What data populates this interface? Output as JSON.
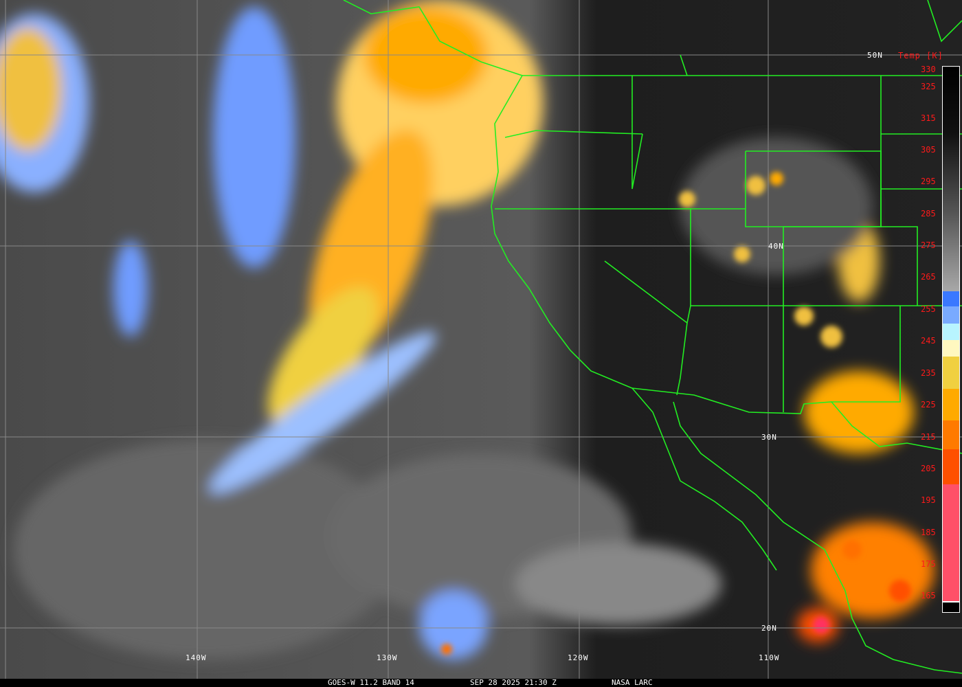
{
  "footer": {
    "satellite_band": "GOES-W 11.2 BAND 14",
    "datetime": "SEP 28 2025 21:30 Z",
    "source": "NASA LARC"
  },
  "colorbar": {
    "title": "Temp [K]",
    "ticks": [
      "330",
      "325",
      "315",
      "305",
      "295",
      "285",
      "275",
      "265",
      "255",
      "245",
      "235",
      "225",
      "215",
      "205",
      "195",
      "185",
      "175",
      "165"
    ],
    "colors": {
      "warm_black": "#000000",
      "cold_gray": "#a8a8a8",
      "blue": "#3a78ff",
      "light_blue": "#79aaff",
      "pale_cyan": "#b8f4ff",
      "cream": "#fff8c0",
      "yellow": "#f0d040",
      "orange": "#ffaa00",
      "dark_orange": "#ff7a00",
      "red_orange": "#ff5000",
      "pink": "#ff5068"
    }
  },
  "grid": {
    "longitudes": [
      "140W",
      "130W",
      "120W",
      "110W"
    ],
    "latitudes": [
      "50N",
      "40N",
      "30N",
      "20N"
    ],
    "line_color": "#888888",
    "boundary_color": "#22ee22"
  }
}
